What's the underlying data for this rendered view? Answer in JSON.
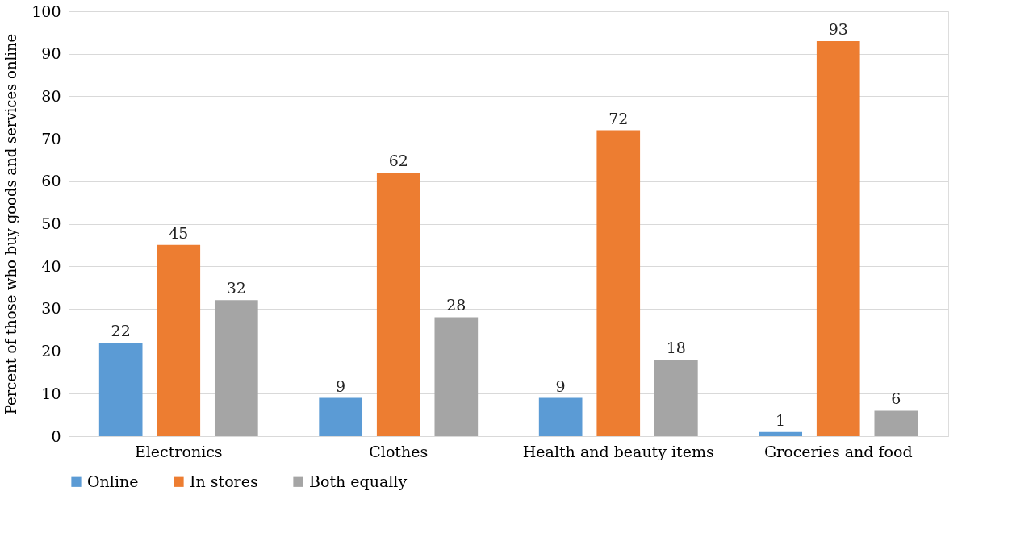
{
  "chart_data": {
    "type": "bar",
    "ylabel": "Percent of those who buy goods and services online",
    "categories": [
      "Electronics",
      "Clothes",
      "Health and beauty items",
      "Groceries and food"
    ],
    "series": [
      {
        "name": "Online",
        "color": "#5b9bd5",
        "values": [
          22,
          9,
          9,
          1
        ]
      },
      {
        "name": "In stores",
        "color": "#ed7d31",
        "values": [
          45,
          62,
          72,
          93
        ]
      },
      {
        "name": "Both equally",
        "color": "#a5a5a5",
        "values": [
          32,
          28,
          18,
          6
        ]
      }
    ],
    "ylim": [
      0,
      100
    ],
    "yticks": [
      0,
      10,
      20,
      30,
      40,
      50,
      60,
      70,
      80,
      90,
      100
    ],
    "grid": "y",
    "legend": "bottom",
    "data_labels": true
  }
}
